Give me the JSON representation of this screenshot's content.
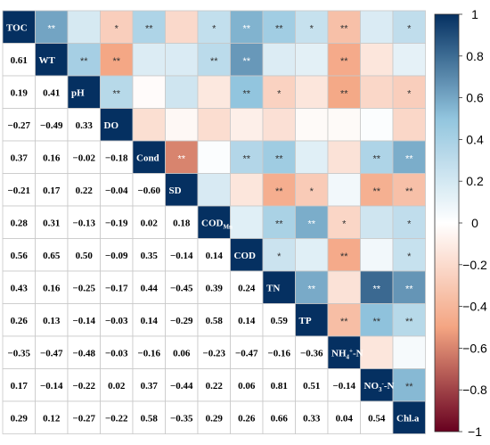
{
  "chart_data": {
    "type": "heatmap",
    "variables": [
      "TOC",
      "WT",
      "pH",
      "DO",
      "Cond",
      "SD",
      "COD_Mn",
      "COD",
      "TN",
      "TP",
      "NH4+-N",
      "NO3--N",
      "Chl.a"
    ],
    "variable_labels": [
      {
        "base": "TOC"
      },
      {
        "base": "WT"
      },
      {
        "base": "pH"
      },
      {
        "base": "DO"
      },
      {
        "base": "Cond"
      },
      {
        "base": "SD"
      },
      {
        "base": "COD",
        "sub": "Mn"
      },
      {
        "base": "COD"
      },
      {
        "base": "TN"
      },
      {
        "base": "TP"
      },
      {
        "base": "NH",
        "sub": "4",
        "sup": "+",
        "tail": "-N"
      },
      {
        "base": "NO",
        "sub": "3",
        "sup": "-",
        "tail": "-N"
      },
      {
        "base": "Chl.a"
      }
    ],
    "correlations": [
      [
        1,
        0.61,
        0.19,
        -0.27,
        0.37,
        -0.21,
        0.28,
        0.56,
        0.43,
        0.26,
        -0.35,
        0.17,
        0.29
      ],
      [
        0.61,
        1,
        0.41,
        -0.49,
        0.16,
        0.17,
        0.31,
        0.65,
        0.16,
        0.13,
        -0.47,
        -0.14,
        0.12
      ],
      [
        0.19,
        0.41,
        1,
        0.33,
        -0.02,
        0.22,
        -0.13,
        0.5,
        -0.25,
        -0.14,
        -0.48,
        -0.22,
        -0.27
      ],
      [
        -0.27,
        -0.49,
        0.33,
        1,
        -0.18,
        -0.04,
        -0.19,
        -0.09,
        -0.17,
        -0.03,
        -0.03,
        0.02,
        -0.22
      ],
      [
        0.37,
        0.16,
        -0.02,
        -0.18,
        1,
        -0.6,
        0.02,
        0.35,
        0.44,
        0.14,
        -0.16,
        0.37,
        0.58
      ],
      [
        -0.21,
        0.17,
        0.22,
        -0.04,
        -0.6,
        1,
        0.18,
        -0.14,
        -0.45,
        -0.29,
        0.06,
        -0.44,
        -0.35
      ],
      [
        0.28,
        0.31,
        -0.13,
        -0.19,
        0.02,
        0.18,
        1,
        0.14,
        0.39,
        0.58,
        -0.23,
        0.22,
        0.29
      ],
      [
        0.56,
        0.65,
        0.5,
        -0.09,
        0.35,
        -0.14,
        0.14,
        1,
        0.24,
        0.14,
        -0.47,
        0.06,
        0.26
      ],
      [
        0.43,
        0.16,
        -0.25,
        -0.17,
        0.44,
        -0.45,
        0.39,
        0.24,
        1,
        0.59,
        -0.16,
        0.81,
        0.66
      ],
      [
        0.26,
        0.13,
        -0.14,
        -0.03,
        0.14,
        -0.29,
        0.58,
        0.14,
        0.59,
        1,
        -0.36,
        0.51,
        0.33
      ],
      [
        -0.35,
        -0.47,
        -0.48,
        -0.03,
        -0.16,
        0.06,
        -0.23,
        -0.47,
        -0.16,
        -0.36,
        1,
        -0.14,
        0.04
      ],
      [
        0.17,
        -0.14,
        -0.22,
        0.02,
        0.37,
        -0.44,
        0.22,
        0.06,
        0.81,
        0.51,
        -0.14,
        1,
        0.54
      ],
      [
        0.29,
        0.12,
        -0.27,
        -0.22,
        0.58,
        -0.35,
        0.29,
        0.26,
        0.66,
        0.33,
        0.04,
        0.54,
        1
      ]
    ],
    "value_labels": {
      "lower_triangle": [
        [
          "0.61"
        ],
        [
          "0.19",
          "0.41"
        ],
        [
          "−0.27",
          "−0.49",
          "0.33"
        ],
        [
          "0.37",
          "0.16",
          "−0.02",
          "−0.18"
        ],
        [
          "−0.21",
          "0.17",
          "0.22",
          "−0.04",
          "−0.60"
        ],
        [
          "0.28",
          "0.31",
          "−0.13",
          "−0.19",
          "0.02",
          "0.18"
        ],
        [
          "0.56",
          "0.65",
          "0.50",
          "−0.09",
          "0.35",
          "−0.14",
          "0.14"
        ],
        [
          "0.43",
          "0.16",
          "−0.25",
          "−0.17",
          "0.44",
          "−0.45",
          "0.39",
          "0.24"
        ],
        [
          "0.26",
          "0.13",
          "−0.14",
          "−0.03",
          "0.14",
          "−0.29",
          "0.58",
          "0.14",
          "0.59"
        ],
        [
          "−0.35",
          "−0.47",
          "−0.48",
          "−0.03",
          "−0.16",
          "0.06",
          "−0.23",
          "−0.47",
          "−0.16",
          "−0.36"
        ],
        [
          "0.17",
          "−0.14",
          "−0.22",
          "0.02",
          "0.37",
          "−0.44",
          "0.22",
          "0.06",
          "0.81",
          "0.51",
          "−0.14"
        ],
        [
          "0.29",
          "0.12",
          "−0.27",
          "−0.22",
          "0.58",
          "−0.35",
          "0.29",
          "0.26",
          "0.66",
          "0.33",
          "0.04",
          "0.54"
        ]
      ]
    },
    "significance_upper": [
      [
        null,
        "**",
        "",
        "*",
        "**",
        "",
        "*",
        "**",
        "**",
        "*",
        "**",
        "",
        "*"
      ],
      [
        null,
        null,
        "**",
        "**",
        "",
        "",
        "**",
        "**",
        "",
        "",
        "**",
        "",
        ""
      ],
      [
        null,
        null,
        null,
        "**",
        "",
        "",
        "",
        "**",
        "*",
        "",
        "**",
        "",
        "*"
      ],
      [
        null,
        null,
        null,
        null,
        "",
        "",
        "",
        "",
        "",
        "",
        "",
        "",
        ""
      ],
      [
        null,
        null,
        null,
        null,
        null,
        "**",
        "",
        "**",
        "**",
        "",
        "",
        "**",
        "**"
      ],
      [
        null,
        null,
        null,
        null,
        null,
        null,
        "",
        "",
        "**",
        "*",
        "",
        "**",
        "**"
      ],
      [
        null,
        null,
        null,
        null,
        null,
        null,
        null,
        "",
        "**",
        "**",
        "*",
        "",
        "*"
      ],
      [
        null,
        null,
        null,
        null,
        null,
        null,
        null,
        null,
        "*",
        "",
        "**",
        "",
        "*"
      ],
      [
        null,
        null,
        null,
        null,
        null,
        null,
        null,
        null,
        null,
        "**",
        "",
        "**",
        "**"
      ],
      [
        null,
        null,
        null,
        null,
        null,
        null,
        null,
        null,
        null,
        null,
        "**",
        "**",
        "**"
      ],
      [
        null,
        null,
        null,
        null,
        null,
        null,
        null,
        null,
        null,
        null,
        null,
        "",
        ""
      ],
      [
        null,
        null,
        null,
        null,
        null,
        null,
        null,
        null,
        null,
        null,
        null,
        null,
        "**"
      ]
    ],
    "colorbar": {
      "min": -1,
      "max": 1,
      "ticks": [
        "1",
        "0.8",
        "0.6",
        "0.4",
        "0.2",
        "0",
        "−0.2",
        "−0.4",
        "−0.6",
        "−0.8",
        "−1"
      ],
      "tick_values": [
        1,
        0.8,
        0.6,
        0.4,
        0.2,
        0,
        -0.2,
        -0.4,
        -0.6,
        -0.8,
        -1
      ],
      "colors": {
        "neg_end": "#67001f",
        "neg_mid": "#f4a582",
        "zero": "#ffffff",
        "pos_mid": "#92c5de",
        "pos_end": "#053061"
      }
    },
    "diagonal_color": "#053061",
    "grid": true
  }
}
